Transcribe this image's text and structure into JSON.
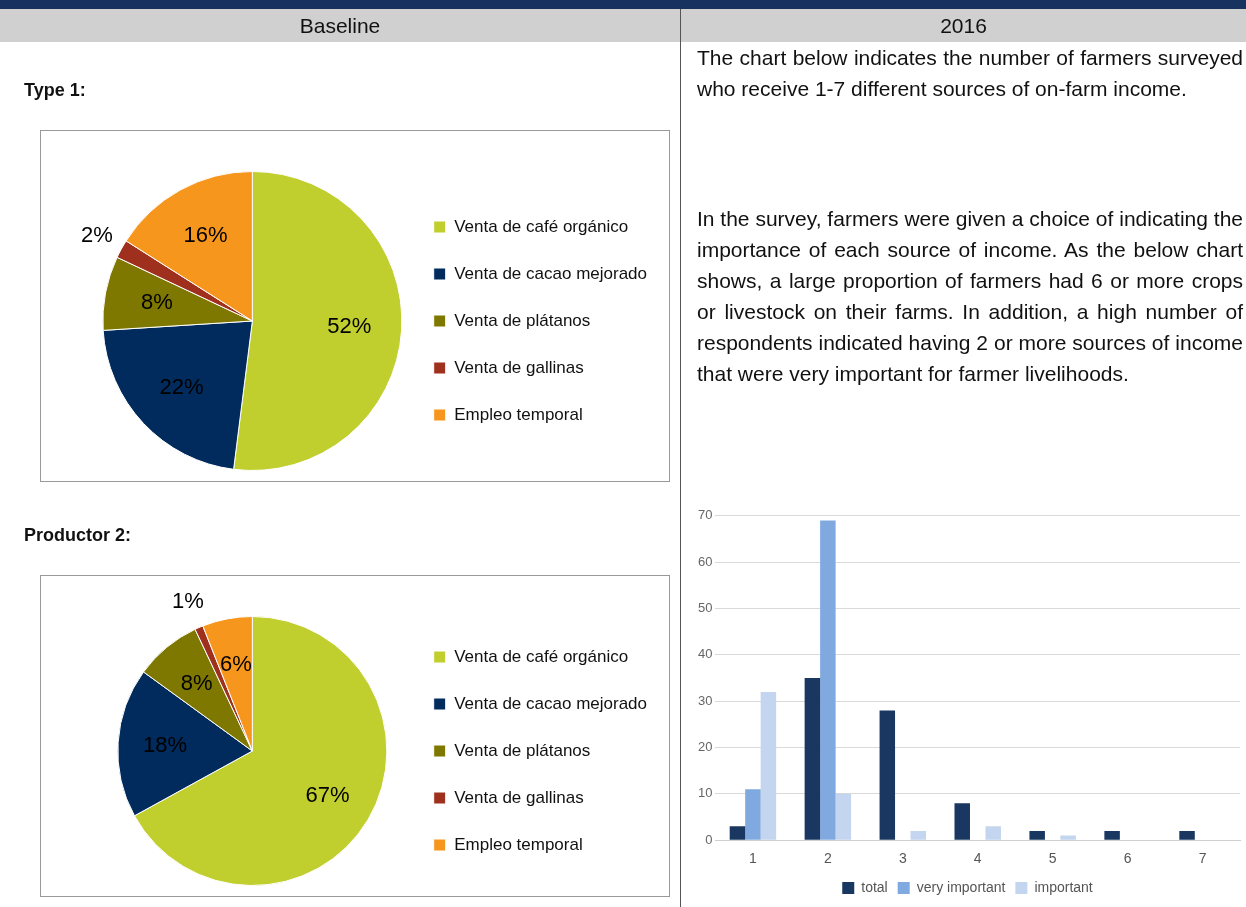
{
  "chart_data": [
    {
      "type": "other",
      "annotations": [
        "Baseline",
        "2016",
        "The chart below indicates the number of farmers surveyed who receive 1-7 different sources of on-farm income.",
        "In the survey, farmers were given a choice of indicating the importance of each source of income. As the below chart shows, a large proportion of farmers had 6 or more crops or livestock on their farms. In addition, a high number of respondents indicated having 2 or more sources of income that were very important for farmer livelihoods."
      ]
    },
    {
      "type": "pie",
      "title": "Type  1:",
      "categories": [
        "Venta de café orgánico",
        "Venta de cacao mejorado",
        "Venta de plátanos",
        "Venta de gallinas",
        "Empleo temporal"
      ],
      "values": [
        52,
        22,
        8,
        2,
        16
      ],
      "value_labels": [
        "52%",
        "22%",
        "8%",
        "2%",
        "16%"
      ],
      "colors": [
        "#c0ce2e",
        "#002b5c",
        "#7f7800",
        "#a0301e",
        "#f7961d"
      ],
      "legend": "right"
    },
    {
      "type": "pie",
      "title": "Productor 2:",
      "categories": [
        "Venta de café orgánico",
        "Venta de cacao mejorado",
        "Venta de plátanos",
        "Venta de gallinas",
        "Empleo temporal"
      ],
      "values": [
        67,
        18,
        8,
        1,
        6
      ],
      "value_labels": [
        "67%",
        "18%",
        "8%",
        "1%",
        "6%"
      ],
      "colors": [
        "#c0ce2e",
        "#002b5c",
        "#7f7800",
        "#a0301e",
        "#f7961d"
      ],
      "legend": "right"
    },
    {
      "type": "bar",
      "categories": [
        "1",
        "2",
        "3",
        "4",
        "5",
        "6",
        "7"
      ],
      "series": [
        {
          "name": "total",
          "color": "#1a3761",
          "values": [
            3,
            35,
            28,
            8,
            2,
            2,
            2
          ]
        },
        {
          "name": "very important",
          "color": "#80aadf",
          "values": [
            11,
            69,
            0,
            0,
            0,
            0,
            0
          ]
        },
        {
          "name": "important",
          "color": "#c3d5ef",
          "values": [
            32,
            10,
            2,
            3,
            1,
            0,
            0
          ]
        }
      ],
      "ylim": [
        0,
        70
      ],
      "yticks": [
        0,
        10,
        20,
        30,
        40,
        50,
        60,
        70
      ],
      "grid": "y",
      "legend": "bottom"
    }
  ]
}
